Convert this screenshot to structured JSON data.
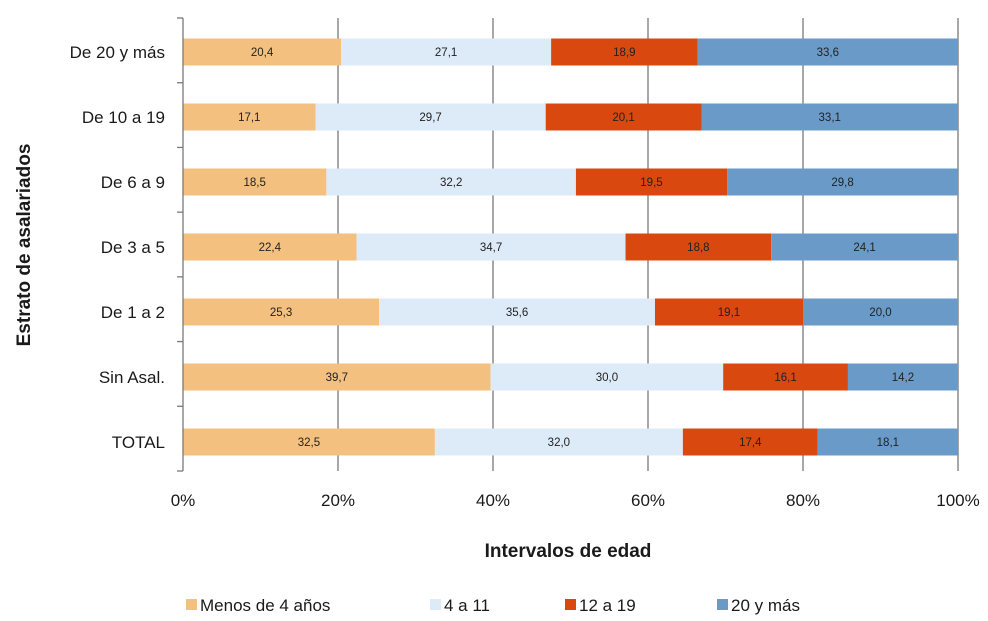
{
  "chart_data": {
    "type": "bar",
    "orientation": "horizontal",
    "stacked": "percent",
    "xlabel": "Intervalos de edad",
    "ylabel": "Estrato de asalariados",
    "xlim": [
      0,
      100
    ],
    "x_ticks": [
      "0%",
      "20%",
      "40%",
      "60%",
      "80%",
      "100%"
    ],
    "grid": "vertical",
    "legend_position": "bottom",
    "categories": [
      "De 20 y más",
      "De 10 a 19",
      "De 6 a 9",
      "De 3 a 5",
      "De 1 a 2",
      "Sin Asal.",
      "TOTAL"
    ],
    "series": [
      {
        "name": "Menos de 4 años",
        "color": "#F4C07F",
        "values": [
          20.4,
          17.1,
          18.5,
          22.4,
          25.3,
          39.7,
          32.5
        ],
        "labels": [
          "20,4",
          "17,1",
          "18,5",
          "22,4",
          "25,3",
          "39,7",
          "32,5"
        ]
      },
      {
        "name": "4 a 11",
        "color": "#DDEBF8",
        "values": [
          27.1,
          29.7,
          32.2,
          34.7,
          35.6,
          30.0,
          32.0
        ],
        "labels": [
          "27,1",
          "29,7",
          "32,2",
          "34,7",
          "35,6",
          "30,0",
          "32,0"
        ]
      },
      {
        "name": "12 a 19",
        "color": "#D9480F",
        "values": [
          18.9,
          20.1,
          19.5,
          18.8,
          19.1,
          16.1,
          17.4
        ],
        "labels": [
          "18,9",
          "20,1",
          "19,5",
          "18,8",
          "19,1",
          "16,1",
          "17,4"
        ]
      },
      {
        "name": "20 y más",
        "color": "#6A9BC8",
        "values": [
          33.6,
          33.1,
          29.8,
          24.1,
          20.0,
          14.2,
          18.1
        ],
        "labels": [
          "33,6",
          "33,1",
          "29,8",
          "24,1",
          "20,0",
          "14,2",
          "18,1"
        ]
      }
    ]
  }
}
